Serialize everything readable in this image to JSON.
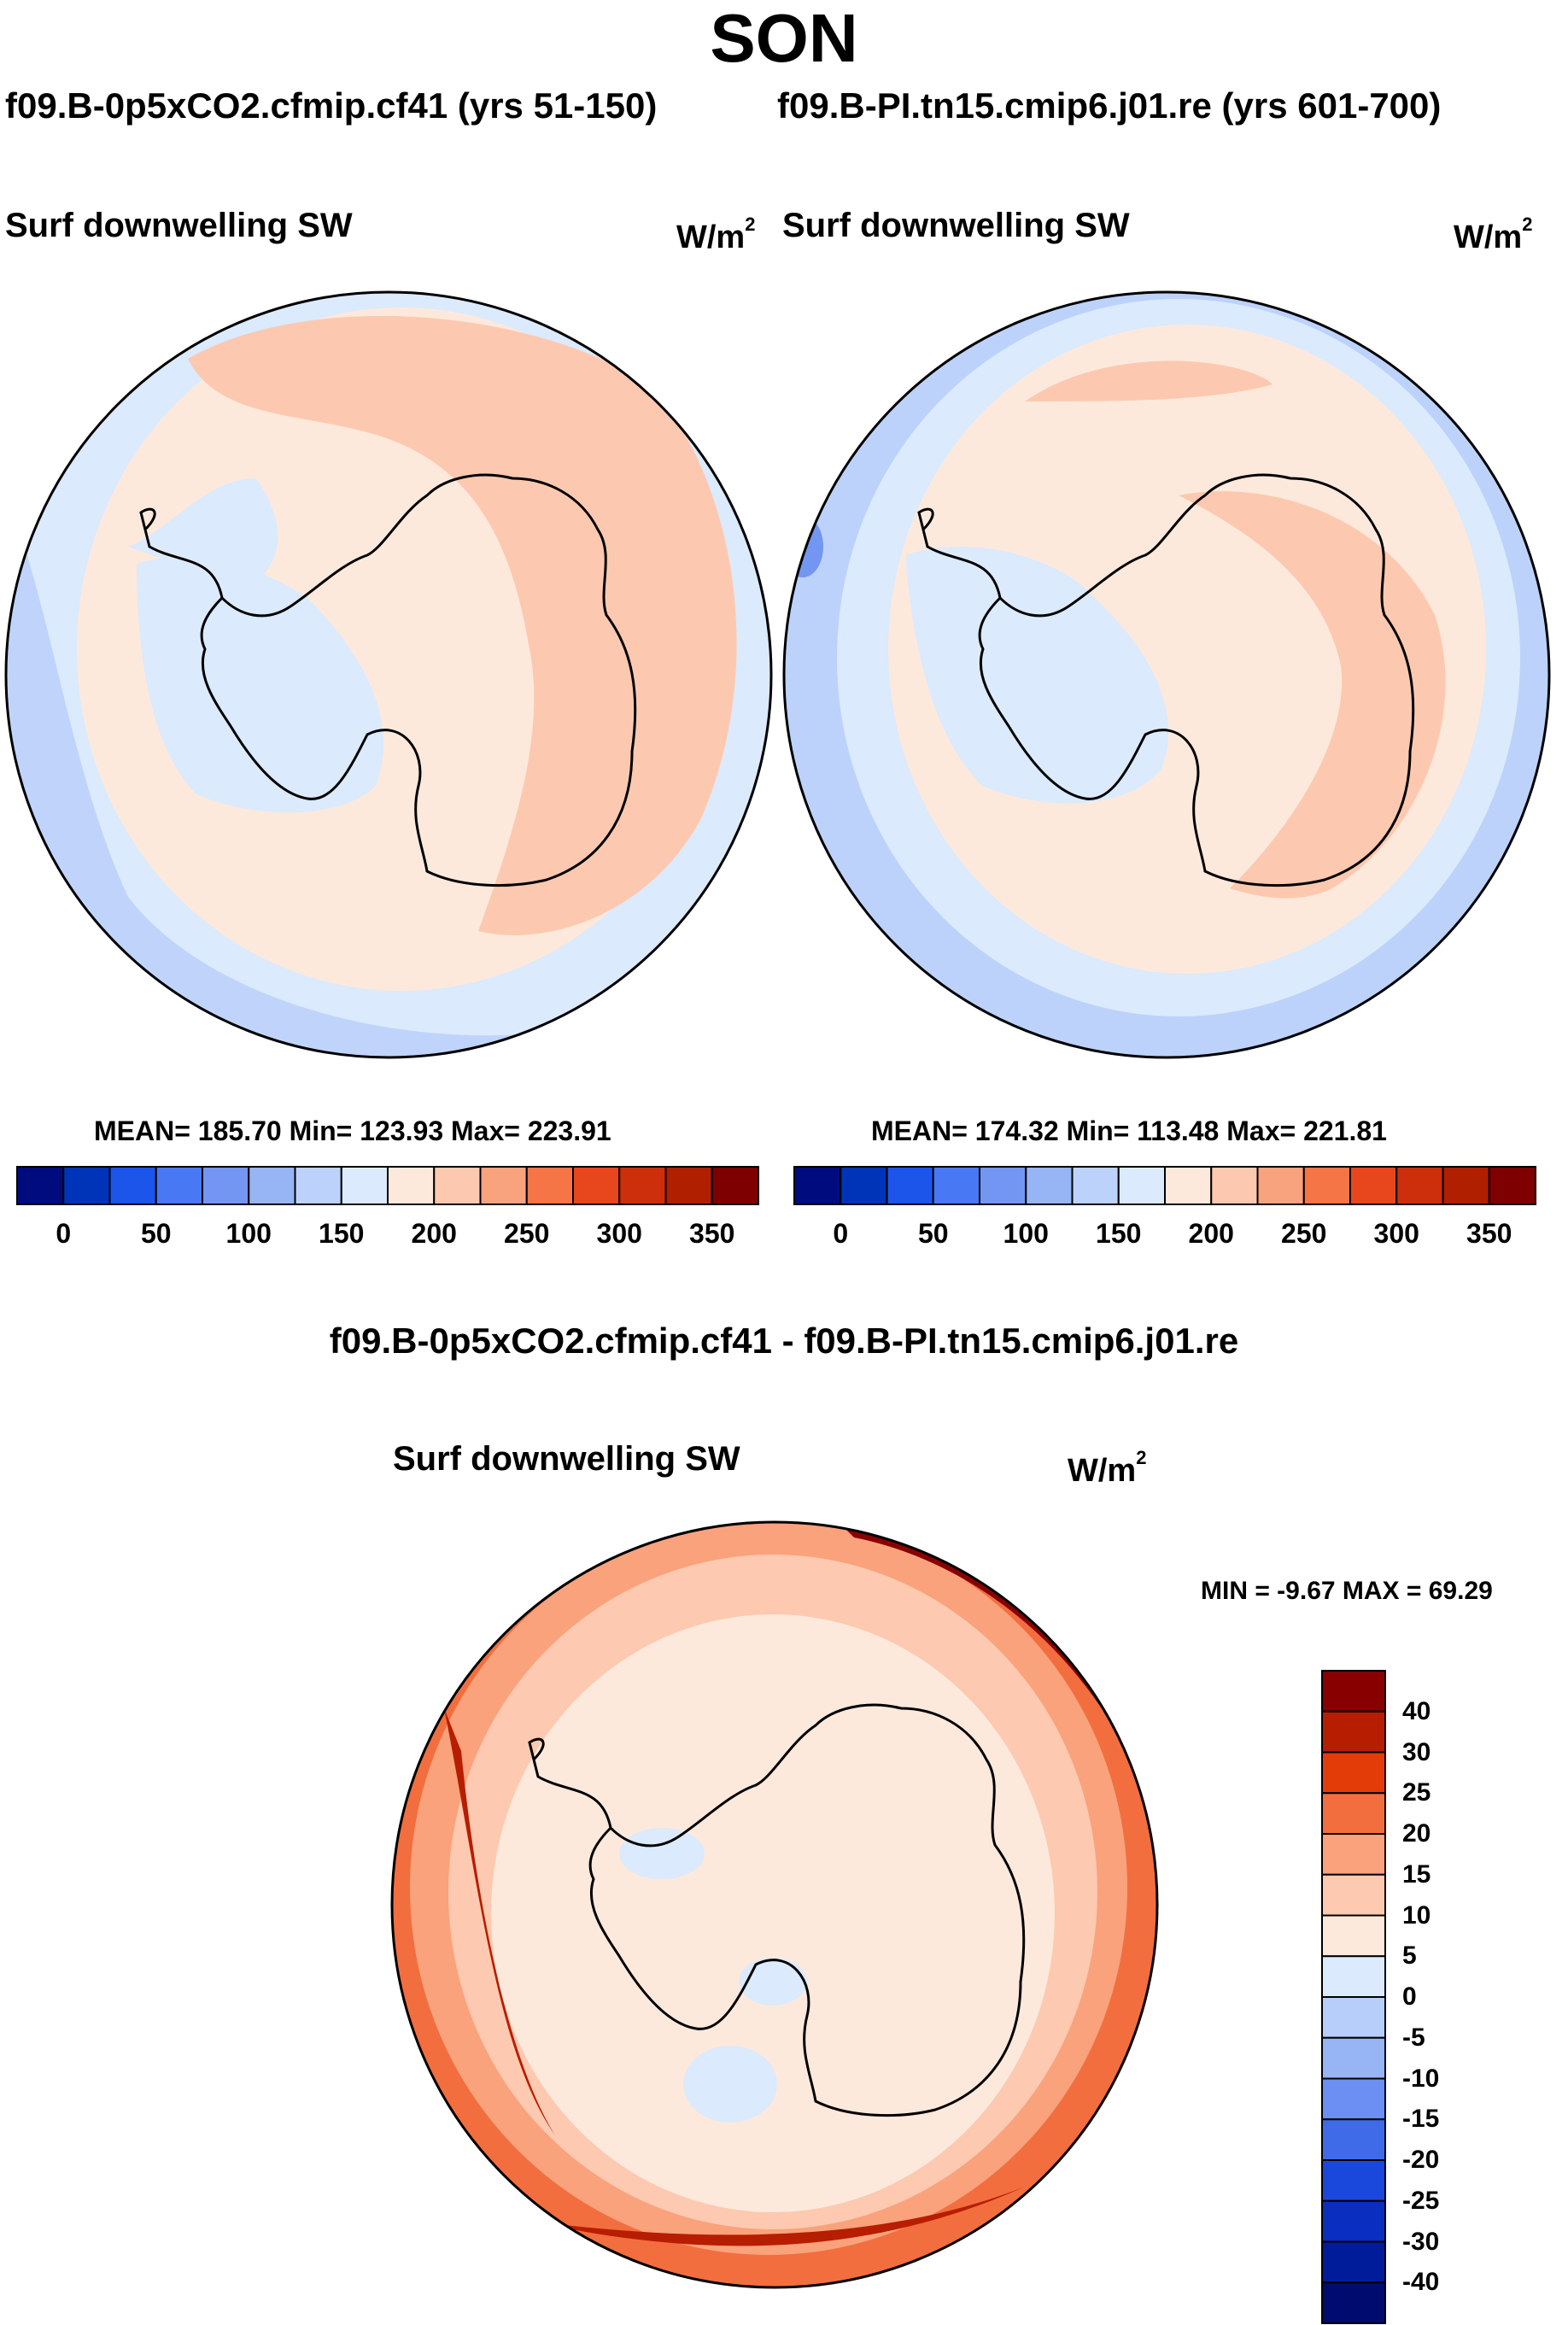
{
  "title": "SON",
  "case_a_label": "f09.B-0p5xCO2.cfmip.cf41 (yrs 51-150)",
  "case_b_label": "f09.B-PI.tn15.cmip6.j01.re (yrs 601-700)",
  "diff_title": "f09.B-0p5xCO2.cfmip.cf41 - f09.B-PI.tn15.cmip6.j01.re",
  "panels": [
    {
      "variable": "Surf downwelling SW",
      "unit": "W/m",
      "unit_exp": "2",
      "stats": "MEAN= 185.70  Min= 123.93  Max= 223.91"
    },
    {
      "variable": "Surf downwelling SW",
      "unit": "W/m",
      "unit_exp": "2",
      "stats": "MEAN= 174.32  Min= 113.48  Max= 221.81"
    },
    {
      "variable": "Surf downwelling SW",
      "unit": "W/m",
      "unit_exp": "2",
      "stats": "MIN =  -9.67 MAX =  69.29"
    }
  ],
  "field_colorbar": {
    "colors": [
      "#000c7e",
      "#0034b8",
      "#1c55ea",
      "#4978f4",
      "#7396f2",
      "#97b4f4",
      "#bcd2fb",
      "#dbeafc",
      "#fde9dc",
      "#fcc9b0",
      "#f9a27e",
      "#f67546",
      "#e8471d",
      "#cd2f0c",
      "#b01f00",
      "#7e0000"
    ],
    "tick_labels": [
      "0",
      "50",
      "100",
      "150",
      "200",
      "250",
      "300",
      "350"
    ]
  },
  "diff_colorbar": {
    "colors_top_to_bottom": [
      "#880000",
      "#b71d00",
      "#e33c08",
      "#f26e3f",
      "#f9a27c",
      "#fdc9b0",
      "#fde9dc",
      "#dbeafc",
      "#b7cefa",
      "#97b4f4",
      "#6b8ff2",
      "#3f6be8",
      "#1a48dc",
      "#0a2ec0",
      "#001c9a",
      "#000b70"
    ],
    "tick_labels_top_to_bottom": [
      "40",
      "30",
      "25",
      "20",
      "15",
      "10",
      "5",
      "0",
      "-5",
      "-10",
      "-15",
      "-20",
      "-25",
      "-30",
      "-40"
    ]
  }
}
